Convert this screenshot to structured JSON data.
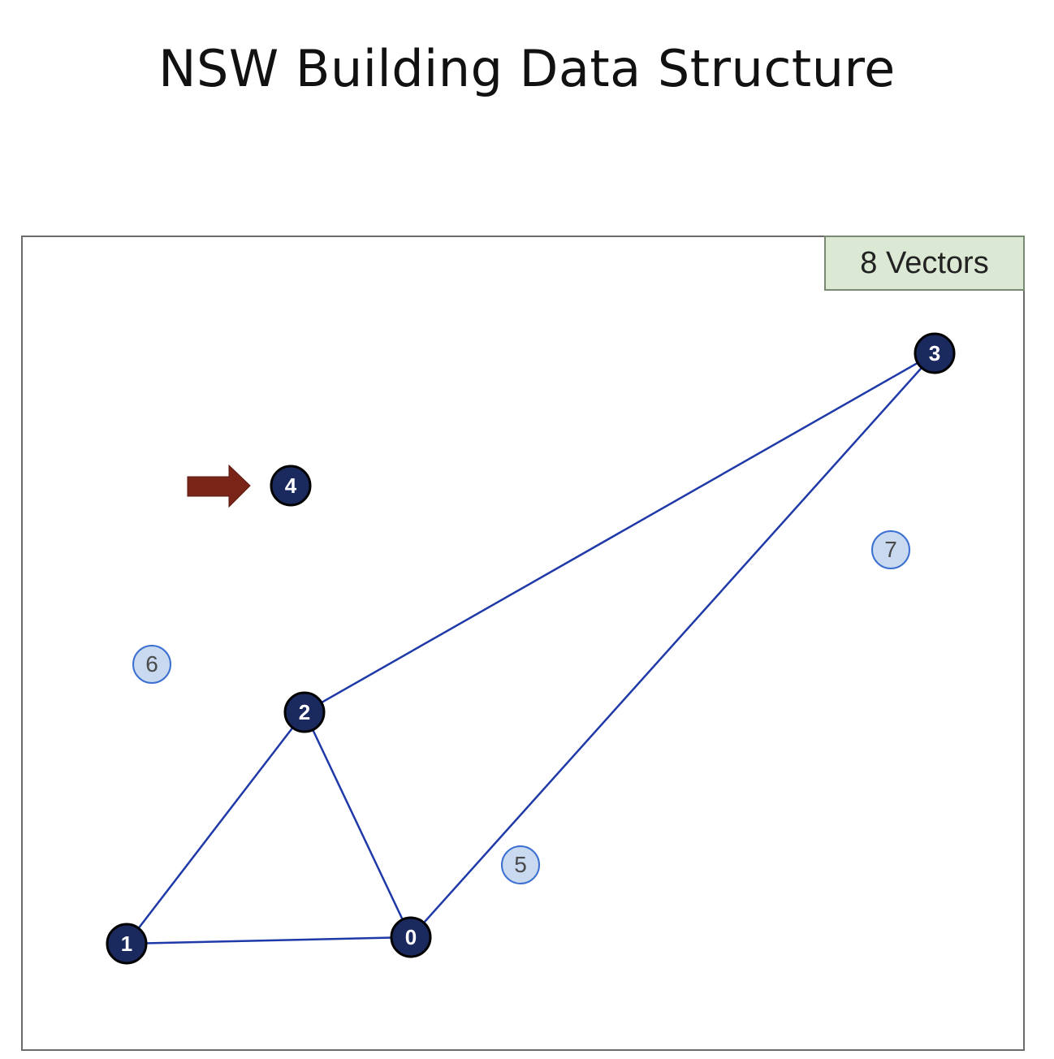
{
  "title": "NSW Building Data Structure",
  "badge": "8 Vectors",
  "colors": {
    "edge": "#1f3aa8",
    "primary_node_fill": "#1b2a5e",
    "primary_node_stroke": "#000000",
    "secondary_node_fill": "#c9daf0",
    "secondary_node_stroke": "#3b6fd1",
    "arrow": "#7a2418",
    "badge_bg": "#dbe9d4"
  },
  "nodes": [
    {
      "id": "0",
      "kind": "primary"
    },
    {
      "id": "1",
      "kind": "primary"
    },
    {
      "id": "2",
      "kind": "primary"
    },
    {
      "id": "3",
      "kind": "primary"
    },
    {
      "id": "4",
      "kind": "primary",
      "highlighted": true
    },
    {
      "id": "5",
      "kind": "secondary"
    },
    {
      "id": "6",
      "kind": "secondary"
    },
    {
      "id": "7",
      "kind": "secondary"
    }
  ],
  "edges": [
    [
      "1",
      "0"
    ],
    [
      "1",
      "2"
    ],
    [
      "2",
      "0"
    ],
    [
      "2",
      "3"
    ],
    [
      "0",
      "3"
    ]
  ],
  "highlight_arrow": {
    "icon": "right-arrow-icon",
    "target": "4"
  }
}
